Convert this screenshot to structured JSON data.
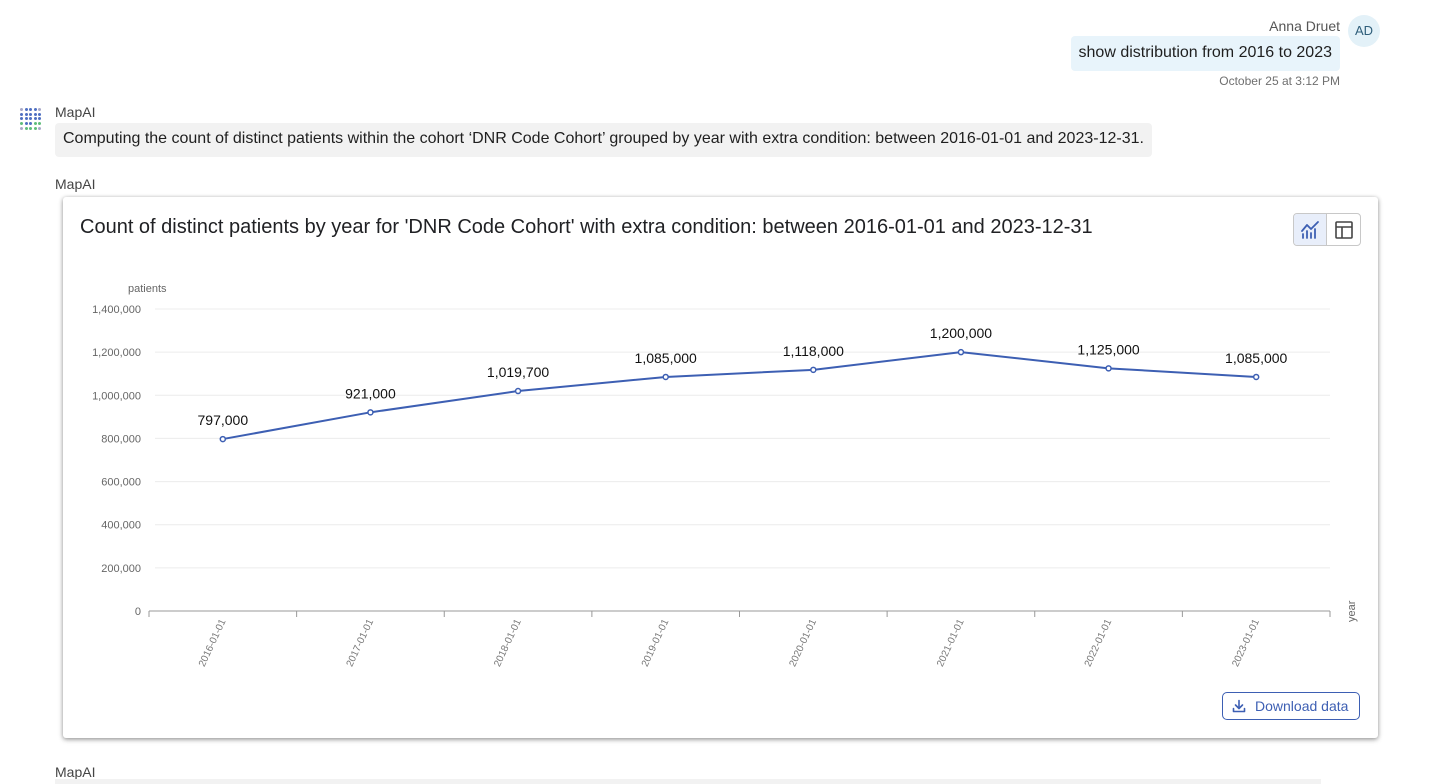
{
  "user_message": {
    "sender": "Anna Druet",
    "initials": "AD",
    "text": "show distribution from 2016 to 2023",
    "timestamp": "October 25 at 3:12 PM"
  },
  "bot_message": {
    "sender": "MapAI",
    "text": "Computing the count of distinct patients within the cohort ‘DNR Code Cohort’ grouped by year with extra condition: between 2016-01-01 and 2023-12-31."
  },
  "chart_message": {
    "sender": "MapAI",
    "title": "Count of distinct patients by year for 'DNR Code Cohort' with extra condition: between 2016-01-01 and 2023-12-31",
    "download_label": "Download data",
    "view_toggle": {
      "active": "line-chart-icon",
      "options": [
        "line-chart-icon",
        "table-icon"
      ]
    }
  },
  "next_message": {
    "sender": "MapAI"
  },
  "chart_data": {
    "type": "line",
    "xlabel": "year",
    "ylabel": "patients",
    "categories": [
      "2016-01-01",
      "2017-01-01",
      "2018-01-01",
      "2019-01-01",
      "2020-01-01",
      "2021-01-01",
      "2022-01-01",
      "2023-01-01"
    ],
    "values": [
      797000,
      921000,
      1019700,
      1085000,
      1118000,
      1200000,
      1125000,
      1085000
    ],
    "data_labels": [
      "797,000",
      "921,000",
      "1,019,700",
      "1,085,000",
      "1,118,000",
      "1,200,000",
      "1,125,000",
      "1,085,000"
    ],
    "yticks": [
      "0",
      "200,000",
      "400,000",
      "600,000",
      "800,000",
      "1,000,000",
      "1,200,000",
      "1,400,000"
    ],
    "ylim": [
      0,
      1400000
    ],
    "grid": true,
    "line_color": "#3d5fb3"
  }
}
